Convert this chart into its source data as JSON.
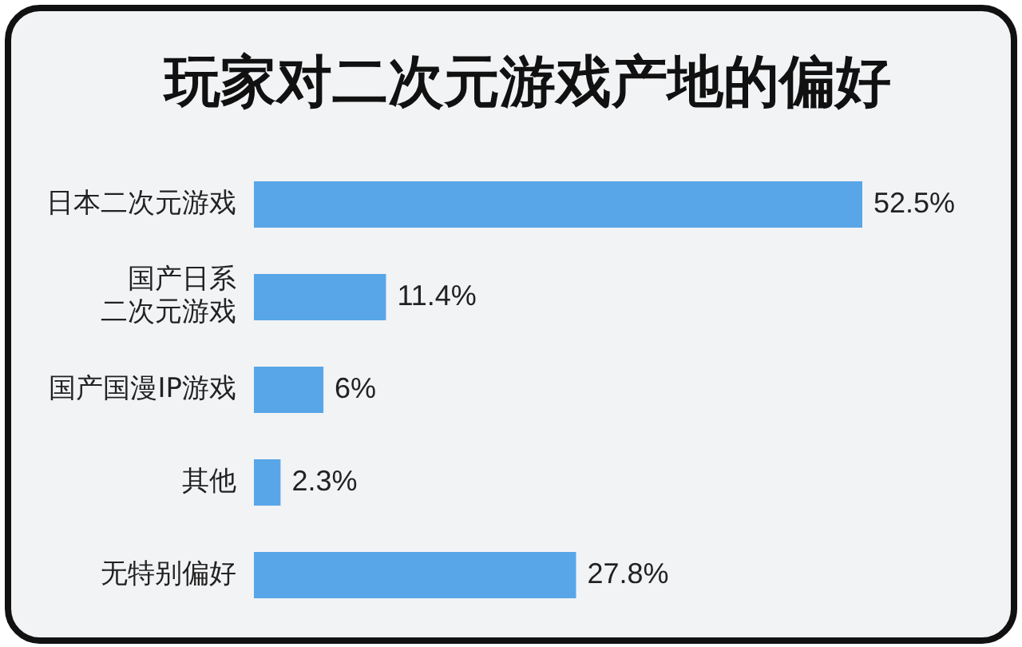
{
  "chart_data": {
    "type": "bar",
    "orientation": "horizontal",
    "title": "玩家对二次元游戏产地的偏好",
    "categories": [
      "日本二次元游戏",
      "国产日系二次元游戏",
      "国产国漫IP游戏",
      "其他",
      "无特别偏好"
    ],
    "values": [
      52.5,
      11.4,
      6,
      2.3,
      27.8
    ],
    "color": "#58a6e7",
    "value_labels": [
      "52.5%",
      "11.4%",
      "6%",
      "2.3%",
      "27.8%"
    ]
  }
}
